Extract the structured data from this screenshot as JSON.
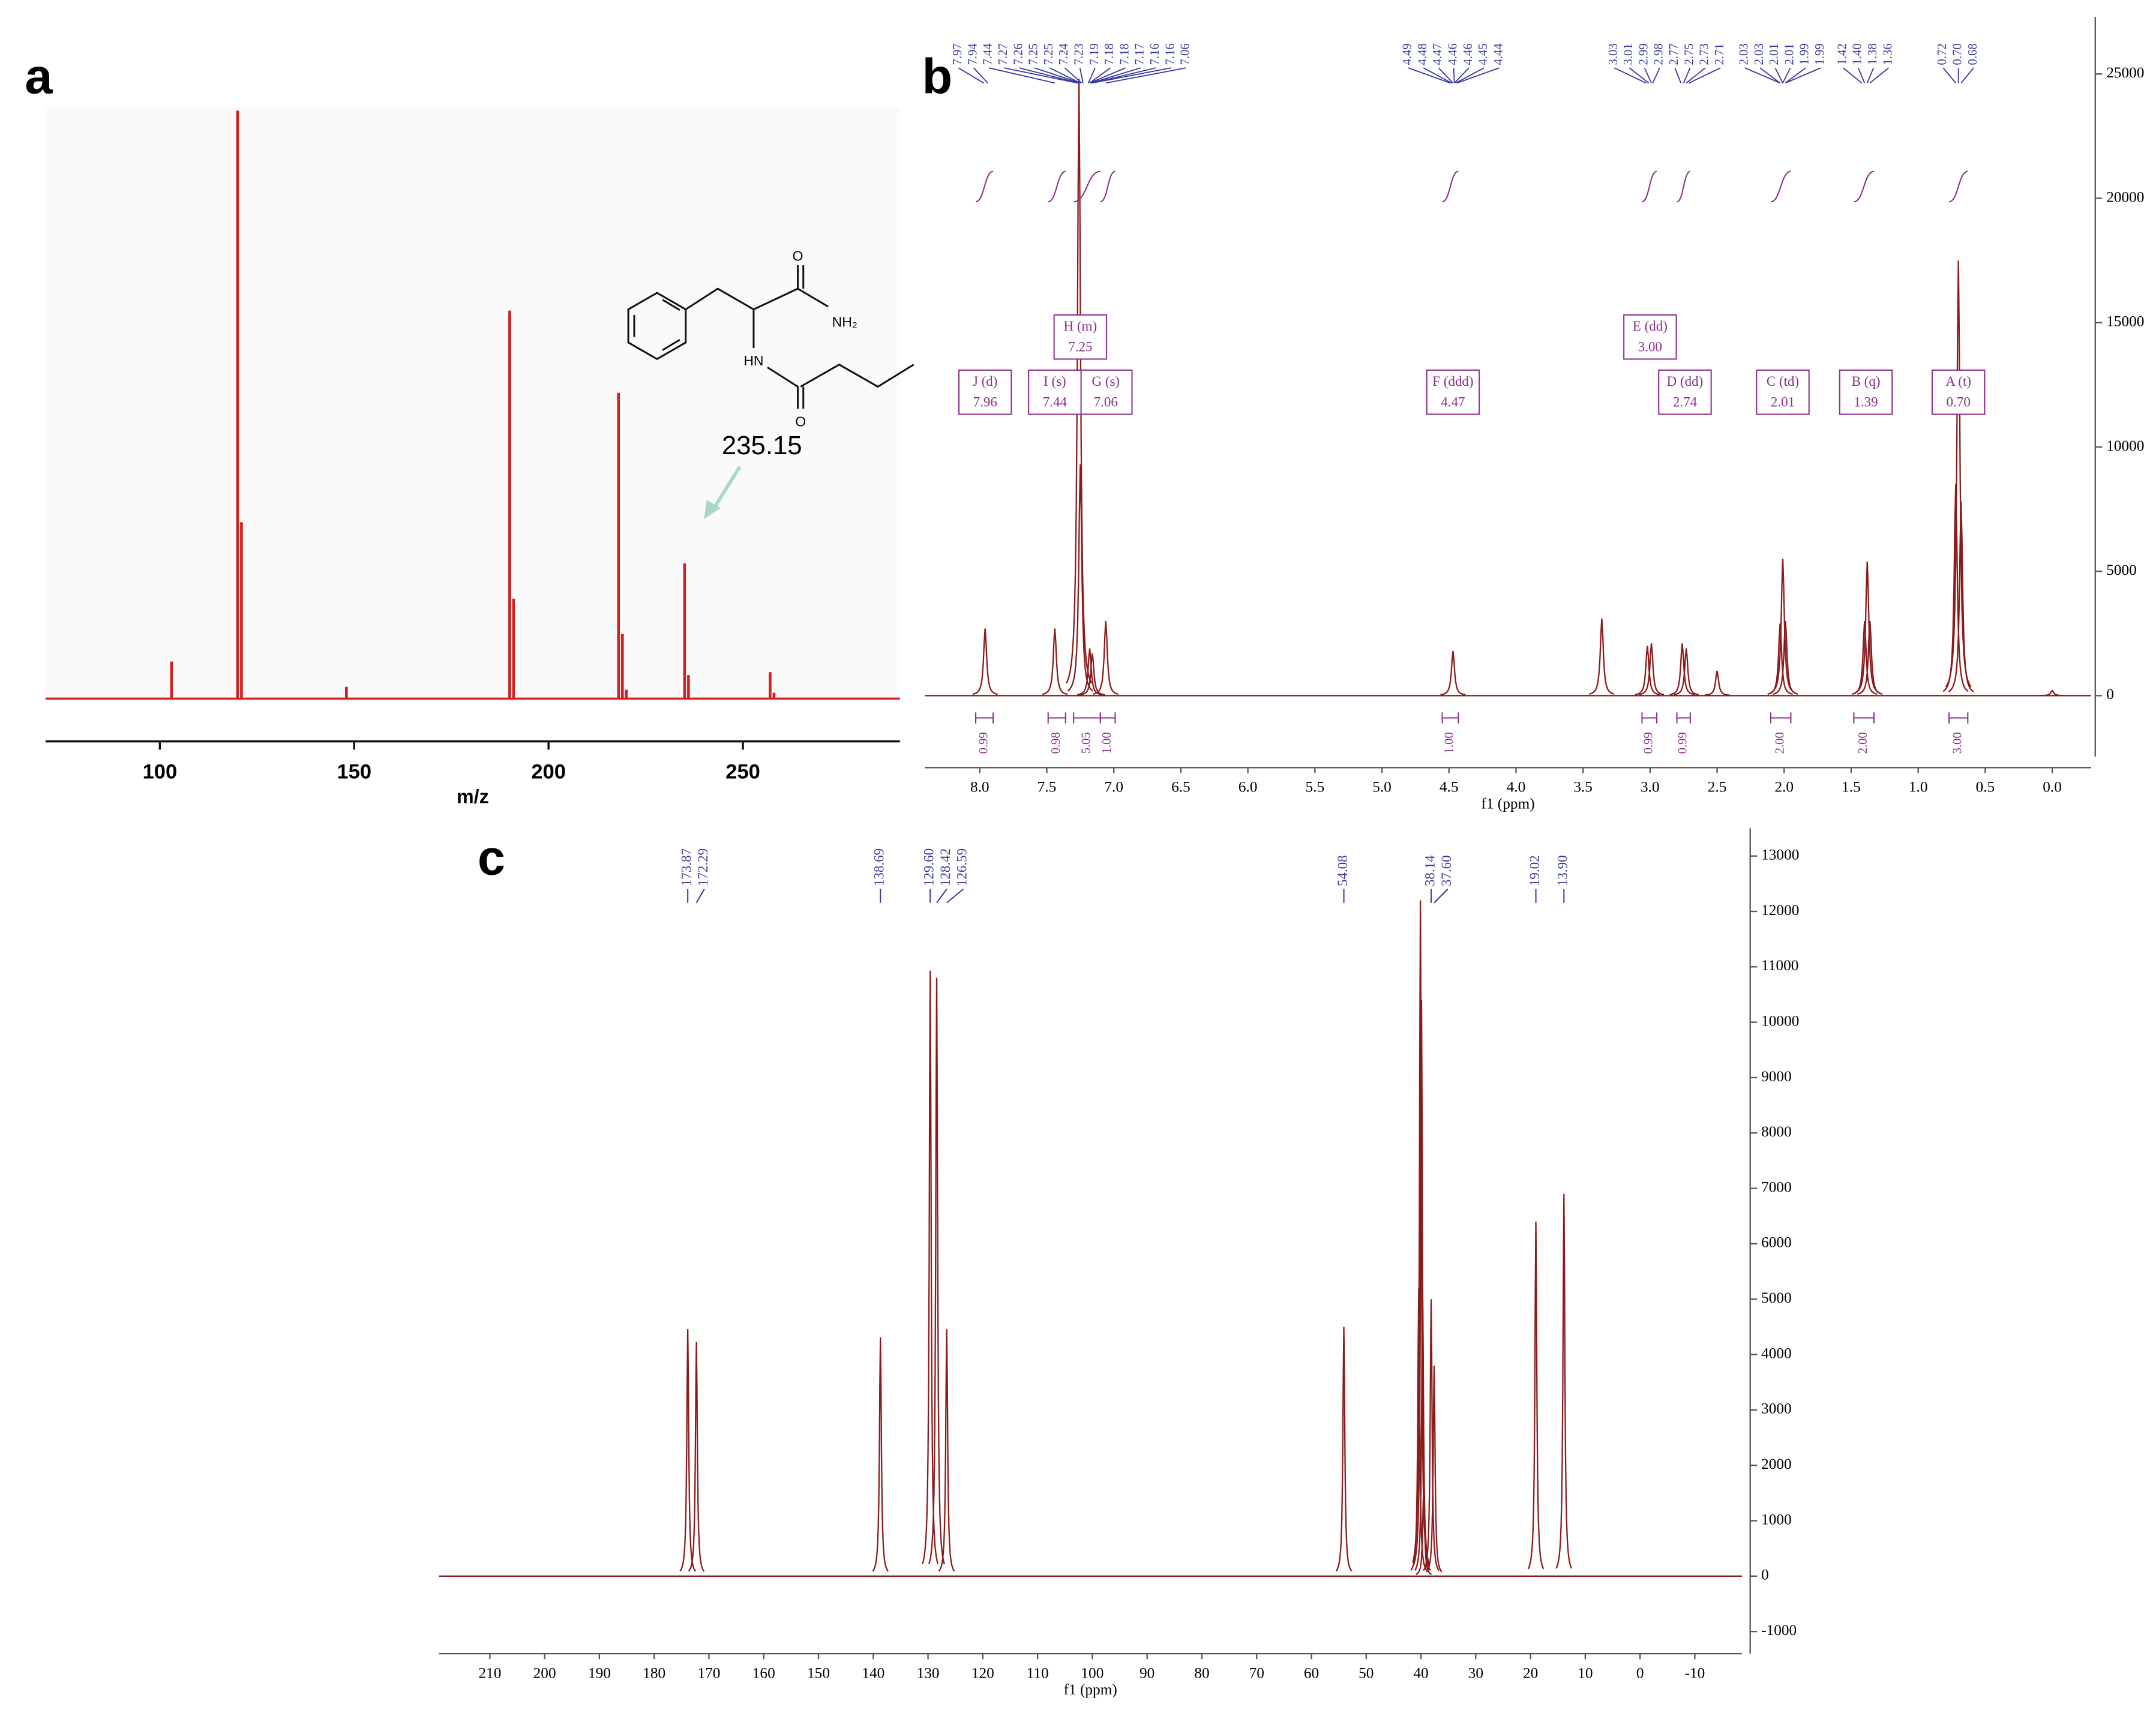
{
  "chart_data": [
    {
      "panel": "a",
      "type": "stem",
      "xlabel": "m/z",
      "x": [
        103,
        120,
        121,
        148,
        190,
        191,
        218,
        219,
        220,
        235,
        236,
        257,
        258
      ],
      "values": [
        6.3,
        100,
        30,
        2,
        66,
        17,
        52,
        11,
        1.5,
        23,
        4,
        4.5,
        1
      ],
      "color": "#d41f1f",
      "xlim": [
        70.6,
        290.4
      ],
      "xticks": [
        100,
        150,
        200,
        250
      ],
      "ylim": [
        0,
        100
      ],
      "annotation": "235.15",
      "structure_labels": [
        "O",
        "NH₂",
        "HN",
        "O"
      ]
    },
    {
      "panel": "b",
      "type": "nmr",
      "xlabel": "f1 (ppm)",
      "color": "#8b1a1a",
      "x": [
        7.96,
        7.44,
        7.26,
        7.25,
        7.18,
        7.16,
        7.06,
        4.47,
        3.36,
        3.02,
        2.99,
        2.76,
        2.73,
        2.5,
        2.03,
        2.01,
        1.99,
        1.4,
        1.38,
        1.36,
        0.72,
        0.7,
        0.68,
        0.0
      ],
      "values": [
        2700,
        2700,
        24800,
        9300,
        1900,
        1700,
        3000,
        1800,
        3100,
        2000,
        2100,
        2100,
        1900,
        1000,
        2900,
        5500,
        3000,
        3000,
        5400,
        3000,
        8500,
        17500,
        7800,
        200
      ],
      "xlim": [
        8.41,
        -0.29
      ],
      "xticks": [
        {
          "value": 8,
          "label": "8.0"
        },
        7.5,
        {
          "value": 7,
          "label": "7.0"
        },
        6.5,
        {
          "value": 6,
          "label": "6.0"
        },
        5.5,
        {
          "value": 5,
          "label": "5.0"
        },
        4.5,
        {
          "value": 4,
          "label": "4.0"
        },
        3.5,
        {
          "value": 3,
          "label": "3.0"
        },
        2.5,
        {
          "value": 2,
          "label": "2.0"
        },
        1.5,
        {
          "value": 1,
          "label": "1.0"
        },
        0.5,
        {
          "value": 0,
          "label": "0.0"
        }
      ],
      "ylim": [
        -2450,
        27300
      ],
      "yticks": [
        0,
        5000,
        10000,
        15000,
        20000,
        25000
      ],
      "peak_label_groups": [
        [
          "7.97",
          "7.94",
          "7.44",
          "7.27",
          "7.26",
          "7.25",
          "7.25",
          "7.24",
          "7.23",
          "7.19",
          "7.18",
          "7.18",
          "7.17",
          "7.16",
          "7.16",
          "7.06"
        ],
        [
          "4.49",
          "4.48",
          "4.47",
          "4.46",
          "4.46",
          "4.45",
          "4.44"
        ],
        [
          "3.03",
          "3.01",
          "2.99",
          "2.98",
          "2.77",
          "2.75",
          "2.73",
          "2.71"
        ],
        [
          "2.03",
          "2.03",
          "2.01",
          "2.01",
          "1.99",
          "1.99"
        ],
        [
          "1.42",
          "1.40",
          "1.38",
          "1.36"
        ],
        [
          "0.72",
          "0.70",
          "0.68"
        ]
      ],
      "multiplets": [
        {
          "name": "J (d)",
          "shift": "7.96"
        },
        {
          "name": "I (s)",
          "shift": "7.44"
        },
        {
          "name": "H (m)",
          "shift": "7.25"
        },
        {
          "name": "G (s)",
          "shift": "7.06"
        },
        {
          "name": "F (ddd)",
          "shift": "4.47"
        },
        {
          "name": "E (dd)",
          "shift": "3.00"
        },
        {
          "name": "D (dd)",
          "shift": "2.74"
        },
        {
          "name": "C (td)",
          "shift": "2.01"
        },
        {
          "name": "B (q)",
          "shift": "1.39"
        },
        {
          "name": "A (t)",
          "shift": "0.70"
        }
      ],
      "integrals": [
        {
          "label": "0.99",
          "range": [
            8.03,
            7.9
          ]
        },
        {
          "label": "0.98",
          "range": [
            7.49,
            7.36
          ]
        },
        {
          "label": "5.05",
          "range": [
            7.3,
            7.1
          ]
        },
        {
          "label": "1.00",
          "range": [
            7.1,
            6.99
          ]
        },
        {
          "label": "1.00",
          "range": [
            4.55,
            4.43
          ]
        },
        {
          "label": "0.99",
          "range": [
            3.06,
            2.95
          ]
        },
        {
          "label": "0.99",
          "range": [
            2.8,
            2.7
          ]
        },
        {
          "label": "2.00",
          "range": [
            2.1,
            1.95
          ]
        },
        {
          "label": "2.00",
          "range": [
            1.48,
            1.33
          ]
        },
        {
          "label": "3.00",
          "range": [
            0.77,
            0.63
          ]
        }
      ]
    },
    {
      "panel": "c",
      "type": "nmr",
      "xlabel": "f1 (ppm)",
      "color": "#8b1a1a",
      "x": [
        173.87,
        172.29,
        138.69,
        129.6,
        128.42,
        126.59,
        54.08,
        40.4,
        40.1,
        39.9,
        39.7,
        39.5,
        38.14,
        37.6,
        19.02,
        13.9
      ],
      "values": [
        4460,
        4230,
        4310,
        10930,
        10800,
        4460,
        4500,
        5200,
        12200,
        10400,
        5200,
        1600,
        5000,
        3800,
        6400,
        6900
      ],
      "xlim": [
        219.3,
        -18.6
      ],
      "xticks": [
        210,
        200,
        190,
        180,
        170,
        160,
        150,
        140,
        130,
        120,
        110,
        100,
        90,
        80,
        70,
        60,
        50,
        40,
        30,
        20,
        10,
        0,
        -10
      ],
      "ylim": [
        -1400,
        13500
      ],
      "yticks": [
        -1000,
        0,
        1000,
        2000,
        3000,
        4000,
        5000,
        6000,
        7000,
        8000,
        9000,
        10000,
        11000,
        12000,
        13000
      ],
      "peak_labels": [
        "173.87",
        "172.29",
        "138.69",
        "129.60",
        "128.42",
        "126.59",
        "54.08",
        "38.14",
        "37.60",
        "19.02",
        "13.90"
      ]
    }
  ]
}
